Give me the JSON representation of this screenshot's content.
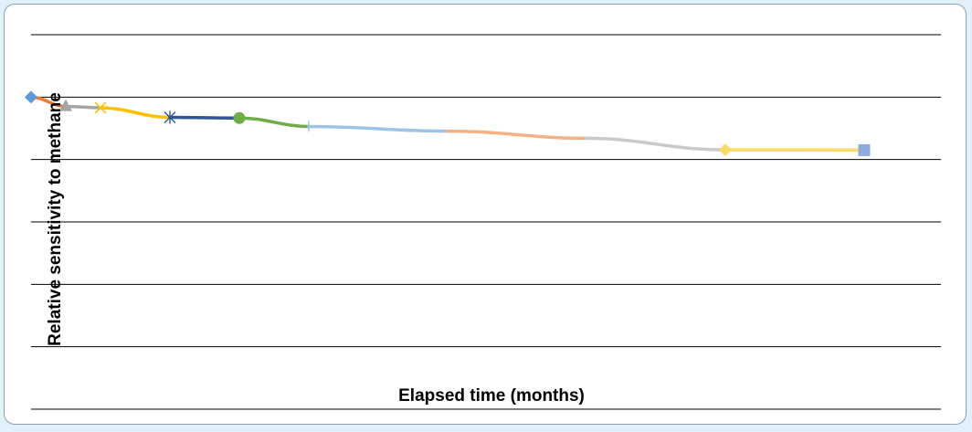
{
  "chart_data": {
    "type": "line",
    "title": "",
    "xlabel": "Elapsed time (months)",
    "ylabel": "Relative sensitivity to methane",
    "grid": true,
    "legend": "none",
    "x_range": [
      0,
      12
    ],
    "y_range": [
      0,
      1.2
    ],
    "gridline_values": [
      0,
      0.2,
      0.4,
      0.6,
      0.8,
      1.0,
      1.2
    ],
    "segments": [
      {
        "x": [
          0,
          0.5
        ],
        "y": [
          1.0,
          0.97
        ],
        "color": "#ed7d31",
        "marker": "diamond",
        "marker_color": "#5b9bd5"
      },
      {
        "x": [
          0.5,
          1.0
        ],
        "y": [
          0.97,
          0.966
        ],
        "color": "#a5a5a5",
        "marker": "triangle",
        "marker_color": "#a5a5a5"
      },
      {
        "x": [
          1.0,
          2.0
        ],
        "y": [
          0.966,
          0.935
        ],
        "color": "#ffc000",
        "marker": "x",
        "marker_color": "#ffc000"
      },
      {
        "x": [
          2.0,
          3.0
        ],
        "y": [
          0.935,
          0.933
        ],
        "color": "#2f5597",
        "marker": "asterisk",
        "marker_color": "#2f5597"
      },
      {
        "x": [
          3.0,
          4.0
        ],
        "y": [
          0.933,
          0.906
        ],
        "color": "#70ad47",
        "marker": "circle",
        "marker_color": "#70ad47"
      },
      {
        "x": [
          4.0,
          6.0
        ],
        "y": [
          0.906,
          0.891
        ],
        "color": "#9dc3e6",
        "marker": "plus",
        "marker_color": "#9dc3e6"
      },
      {
        "x": [
          6.0,
          8.0
        ],
        "y": [
          0.891,
          0.868
        ],
        "color": "#f4b183",
        "marker": "none",
        "marker_color": "#f4b183"
      },
      {
        "x": [
          8.0,
          10.0
        ],
        "y": [
          0.868,
          0.831
        ],
        "color": "#c9c9c9",
        "marker": "none",
        "marker_color": "#c9c9c9"
      },
      {
        "x": [
          10.0,
          12.0
        ],
        "y": [
          0.831,
          0.83
        ],
        "color": "#ffd966",
        "marker": "diamond",
        "marker_color": "#ffd966"
      },
      {
        "x": [
          12.0,
          12.0
        ],
        "y": [
          0.83,
          0.83
        ],
        "color": "#8faadc",
        "marker": "square",
        "marker_color": "#8faadc"
      }
    ]
  }
}
